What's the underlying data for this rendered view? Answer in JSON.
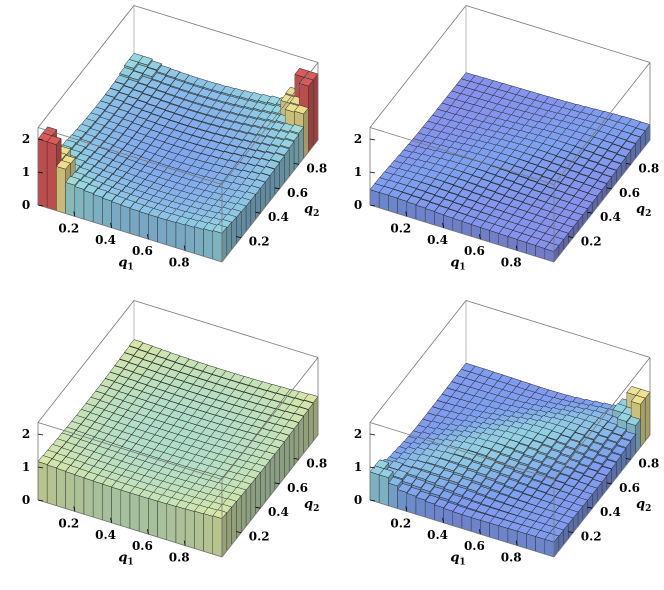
{
  "chart_data": [
    {
      "type": "bar3d",
      "panel": "top-left",
      "grid_size": 20,
      "x_range": [
        0,
        1
      ],
      "y_range": [
        0,
        1
      ],
      "zlim": [
        0,
        2
      ],
      "x_ticks": [
        "0.2",
        "0.4",
        "0.6",
        "0.8"
      ],
      "y_ticks": [
        "0.2",
        "0.4",
        "0.6",
        "0.8"
      ],
      "z_ticks": [
        "0",
        "1",
        "2"
      ],
      "xlabel": "q",
      "xlabel_sub": "1",
      "ylabel": "q",
      "ylabel_sub": "2",
      "surface": {
        "kind": "saddle-corners",
        "base": 0.55,
        "edge_rise": 0.55,
        "corner_peaks": [
          [
            0,
            0,
            2.0
          ],
          [
            1,
            1,
            2.0
          ],
          [
            1,
            0,
            0.6
          ],
          [
            0,
            1,
            0.9
          ]
        ]
      }
    },
    {
      "type": "bar3d",
      "panel": "top-right",
      "grid_size": 20,
      "x_range": [
        0,
        1
      ],
      "y_range": [
        0,
        1
      ],
      "zlim": [
        0,
        2
      ],
      "x_ticks": [
        "0.2",
        "0.4",
        "0.6",
        "0.8"
      ],
      "y_ticks": [
        "0.2",
        "0.4",
        "0.6",
        "0.8"
      ],
      "z_ticks": [
        "0",
        "1",
        "2"
      ],
      "xlabel": "q",
      "xlabel_sub": "1",
      "ylabel": "q",
      "ylabel_sub": "2",
      "surface": {
        "kind": "near-flat",
        "base": 0.35,
        "ridge": 0.15
      }
    },
    {
      "type": "bar3d",
      "panel": "bottom-left",
      "grid_size": 20,
      "x_range": [
        0,
        1
      ],
      "y_range": [
        0,
        1
      ],
      "zlim": [
        0,
        2
      ],
      "x_ticks": [
        "0.2",
        "0.4",
        "0.6",
        "0.8"
      ],
      "y_ticks": [
        "0.2",
        "0.4",
        "0.6",
        "0.8"
      ],
      "z_ticks": [
        "0",
        "1",
        "2"
      ],
      "xlabel": "q",
      "xlabel_sub": "1",
      "ylabel": "q",
      "ylabel_sub": "2",
      "surface": {
        "kind": "plateau",
        "base": 1.0,
        "edge_rise": 0.12
      }
    },
    {
      "type": "bar3d",
      "panel": "bottom-right",
      "grid_size": 20,
      "x_range": [
        0,
        1
      ],
      "y_range": [
        0,
        1
      ],
      "zlim": [
        0,
        2
      ],
      "x_ticks": [
        "0.2",
        "0.4",
        "0.6",
        "0.8"
      ],
      "y_ticks": [
        "0.2",
        "0.4",
        "0.6",
        "0.8"
      ],
      "z_ticks": [
        "0",
        "1",
        "2"
      ],
      "xlabel": "q",
      "xlabel_sub": "1",
      "ylabel": "q",
      "ylabel_sub": "2",
      "surface": {
        "kind": "diagonal-ridge",
        "base": 0.45,
        "ridge": 0.4,
        "corner_peaks": [
          [
            0,
            0,
            0.85
          ],
          [
            1,
            1,
            1.3
          ]
        ]
      }
    }
  ]
}
